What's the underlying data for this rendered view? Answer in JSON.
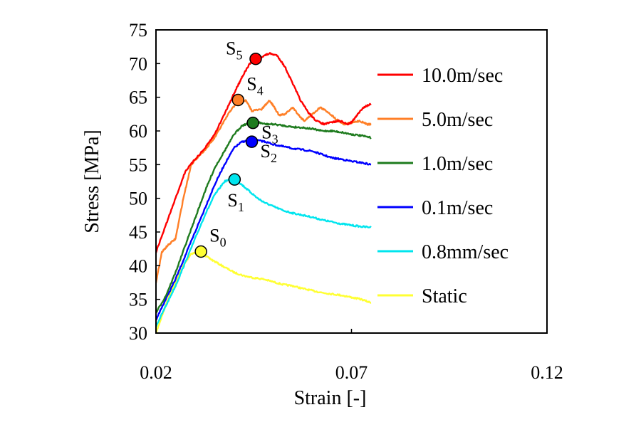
{
  "chart_data": {
    "type": "line",
    "title": "",
    "xlabel": "Strain [-]",
    "ylabel": "Stress [MPa]",
    "xlim": [
      0.02,
      0.12
    ],
    "ylim": [
      30,
      75
    ],
    "x_ticks": [
      0.02,
      0.07,
      0.12
    ],
    "x_tick_labels": [
      "0.02",
      "0.07",
      "0.12"
    ],
    "y_ticks": [
      30,
      35,
      40,
      45,
      50,
      55,
      60,
      65,
      70,
      75
    ],
    "y_tick_labels": [
      "30",
      "35",
      "40",
      "45",
      "50",
      "55",
      "60",
      "65",
      "70",
      "75"
    ],
    "grid": false,
    "legend_position": "right",
    "series": [
      {
        "name": "10.0m/sec",
        "color": "#ff0000",
        "x": [
          0.02,
          0.0225,
          0.025,
          0.0275,
          0.03,
          0.0325,
          0.035,
          0.0375,
          0.0395,
          0.041,
          0.042,
          0.044,
          0.0455,
          0.047,
          0.049,
          0.051,
          0.053,
          0.055,
          0.057,
          0.059,
          0.061,
          0.063,
          0.065,
          0.067,
          0.069,
          0.07,
          0.071,
          0.073,
          0.075
        ],
        "values": [
          42.0,
          46.0,
          50.0,
          54.0,
          55.8,
          57.4,
          59.5,
          62.5,
          65.0,
          66.8,
          68.0,
          70.0,
          70.6,
          71.0,
          71.5,
          71.2,
          69.5,
          67.0,
          64.5,
          62.7,
          61.5,
          61.0,
          61.3,
          61.5,
          61.0,
          61.3,
          62.0,
          63.5,
          64.0
        ]
      },
      {
        "name": "5.0m/sec",
        "color": "#ff7f27",
        "x": [
          0.02,
          0.0215,
          0.023,
          0.025,
          0.027,
          0.029,
          0.0305,
          0.033,
          0.035,
          0.037,
          0.039,
          0.0405,
          0.0415,
          0.043,
          0.0445,
          0.047,
          0.049,
          0.05,
          0.0515,
          0.053,
          0.055,
          0.057,
          0.058,
          0.06,
          0.062,
          0.064,
          0.066,
          0.068,
          0.07,
          0.072,
          0.074,
          0.075
        ],
        "values": [
          37.5,
          42.0,
          43.0,
          44.0,
          50.0,
          55.0,
          56.0,
          57.5,
          59.0,
          61.0,
          63.0,
          64.0,
          64.5,
          64.5,
          63.0,
          63.2,
          64.5,
          63.8,
          62.3,
          62.5,
          63.5,
          62.0,
          61.5,
          62.5,
          63.5,
          62.8,
          61.8,
          61.0,
          61.2,
          61.5,
          61.0,
          61.0
        ]
      },
      {
        "name": "1.0m/sec",
        "color": "#1e7b1e",
        "x": [
          0.02,
          0.0225,
          0.025,
          0.0275,
          0.03,
          0.0325,
          0.035,
          0.0375,
          0.04,
          0.042,
          0.044,
          0.046,
          0.048,
          0.05,
          0.0525,
          0.055,
          0.0575,
          0.06,
          0.0625,
          0.065,
          0.0675,
          0.07,
          0.0725,
          0.075
        ],
        "values": [
          33.0,
          35.5,
          39.0,
          43.0,
          47.0,
          51.0,
          54.5,
          57.0,
          59.5,
          60.8,
          61.2,
          61.3,
          61.0,
          61.0,
          60.8,
          60.6,
          60.5,
          60.3,
          60.0,
          60.0,
          59.8,
          59.5,
          59.3,
          59.0
        ]
      },
      {
        "name": "0.1m/sec",
        "color": "#0000ff",
        "x": [
          0.02,
          0.0225,
          0.025,
          0.0275,
          0.03,
          0.0325,
          0.035,
          0.0375,
          0.04,
          0.042,
          0.044,
          0.046,
          0.048,
          0.05,
          0.0525,
          0.055,
          0.0575,
          0.06,
          0.0625,
          0.065,
          0.0675,
          0.07,
          0.0725,
          0.075
        ],
        "values": [
          32.0,
          35.0,
          38.0,
          41.5,
          45.0,
          48.5,
          52.0,
          55.0,
          57.5,
          58.4,
          58.6,
          58.6,
          58.4,
          58.0,
          57.7,
          57.4,
          57.2,
          57.0,
          56.5,
          56.0,
          55.8,
          55.5,
          55.3,
          55.0
        ]
      },
      {
        "name": "0.8mm/sec",
        "color": "#00e5ee",
        "x": [
          0.02,
          0.0225,
          0.025,
          0.0275,
          0.03,
          0.0325,
          0.035,
          0.0375,
          0.04,
          0.042,
          0.044,
          0.046,
          0.048,
          0.05,
          0.0525,
          0.055,
          0.0575,
          0.06,
          0.0625,
          0.065,
          0.0675,
          0.07,
          0.0725,
          0.075
        ],
        "values": [
          31.0,
          34.0,
          37.0,
          40.5,
          44.0,
          47.5,
          50.5,
          52.5,
          53.0,
          52.0,
          51.0,
          50.0,
          49.3,
          48.8,
          48.2,
          47.8,
          47.5,
          47.2,
          46.8,
          46.5,
          46.2,
          46.0,
          45.8,
          45.7
        ]
      },
      {
        "name": "Static",
        "color": "#ffff33",
        "x": [
          0.02,
          0.0215,
          0.023,
          0.025,
          0.027,
          0.029,
          0.031,
          0.0325,
          0.0345,
          0.0375,
          0.04,
          0.0425,
          0.045,
          0.0475,
          0.05,
          0.0525,
          0.055,
          0.0575,
          0.06,
          0.0625,
          0.065,
          0.0675,
          0.07,
          0.0725,
          0.075
        ],
        "values": [
          30.0,
          32.5,
          35.0,
          37.5,
          40.0,
          41.8,
          42.0,
          41.5,
          40.8,
          39.8,
          39.0,
          38.5,
          38.2,
          38.0,
          37.6,
          37.2,
          37.0,
          36.6,
          36.3,
          36.0,
          35.8,
          35.6,
          35.3,
          35.0,
          34.5
        ]
      }
    ],
    "markers": [
      {
        "id": "S5",
        "base": "S",
        "sub": "5",
        "x": 0.0455,
        "y": 70.7,
        "color": "#ff0000",
        "label_side": "upper-left"
      },
      {
        "id": "S4",
        "base": "S",
        "sub": "4",
        "x": 0.041,
        "y": 64.6,
        "color": "#ff7f27",
        "label_side": "upper-right"
      },
      {
        "id": "S3",
        "base": "S",
        "sub": "3",
        "x": 0.0448,
        "y": 61.2,
        "color": "#1e7b1e",
        "label_side": "lower-right"
      },
      {
        "id": "S2",
        "base": "S",
        "sub": "2",
        "x": 0.0445,
        "y": 58.4,
        "color": "#0000ff",
        "label_side": "lower-right"
      },
      {
        "id": "S1",
        "base": "S",
        "sub": "1",
        "x": 0.0401,
        "y": 52.8,
        "color": "#00e5ee",
        "label_side": "below"
      },
      {
        "id": "S0",
        "base": "S",
        "sub": "0",
        "x": 0.0315,
        "y": 42.1,
        "color": "#ffff33",
        "label_side": "upper-right"
      }
    ]
  }
}
